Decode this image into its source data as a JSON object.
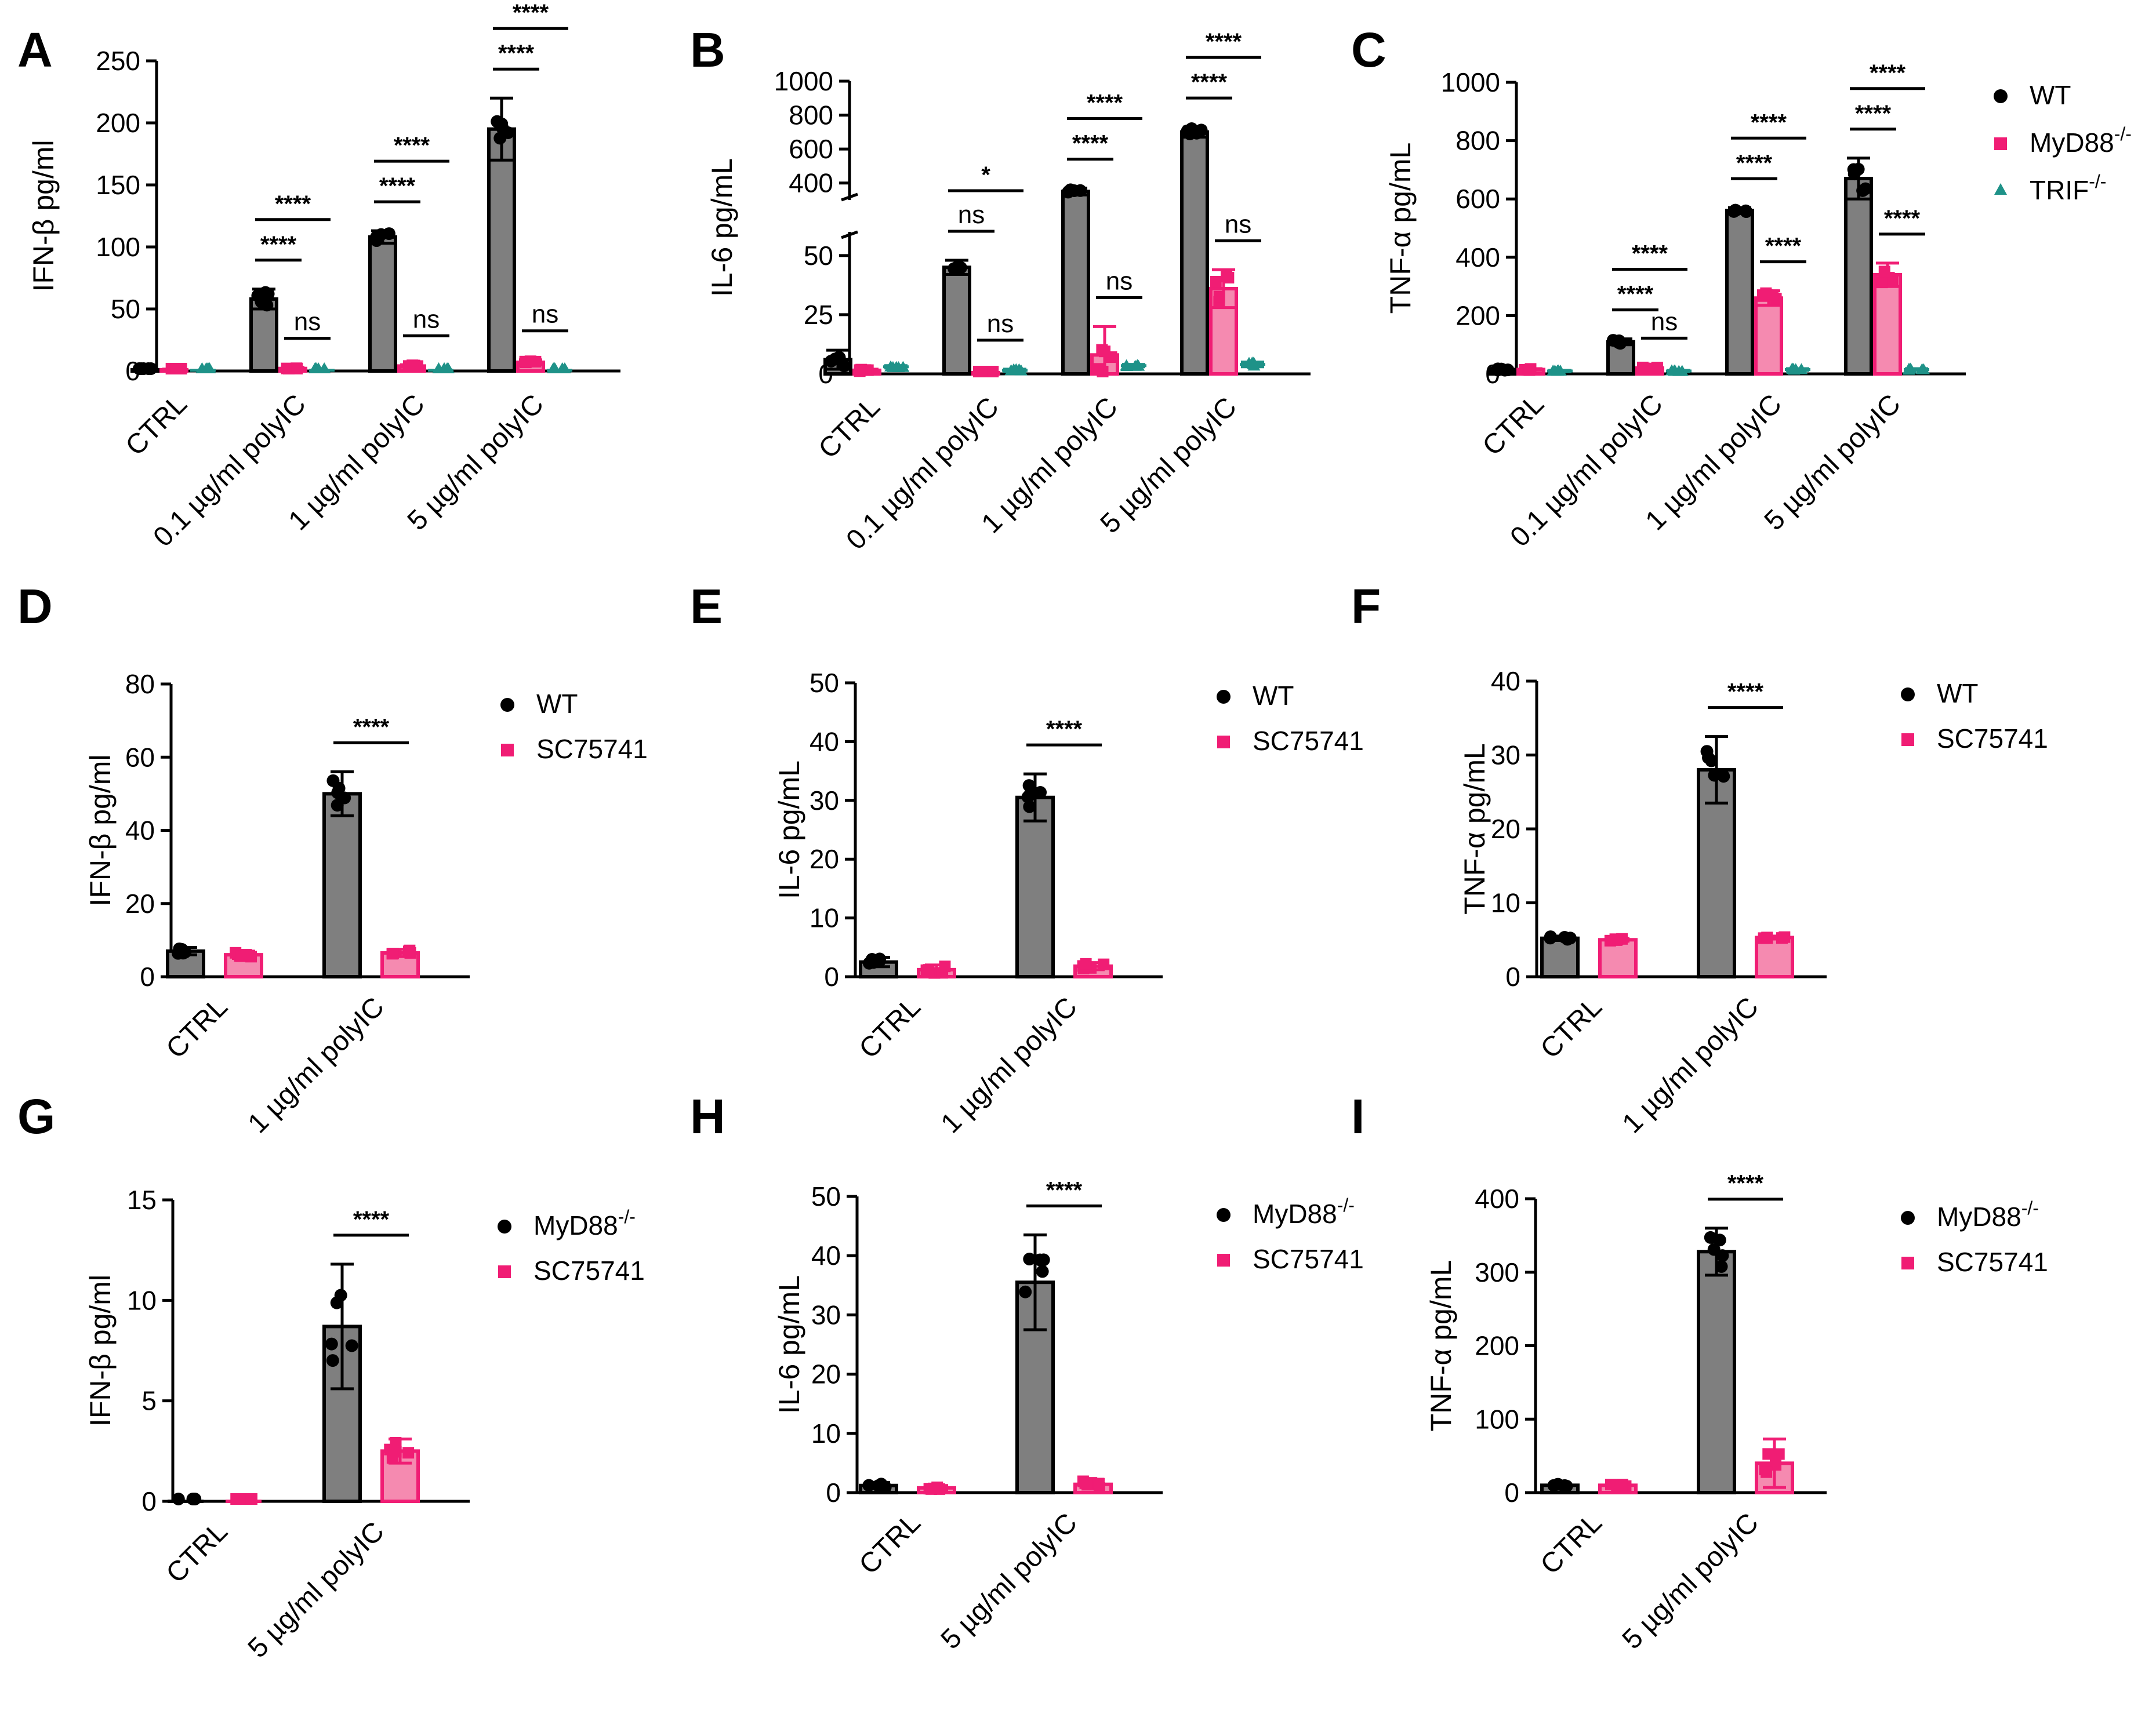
{
  "figure": {
    "colors": {
      "WT": "#222222",
      "MyD88": "#f01d74",
      "TRIF": "#1e9288",
      "SC75741": "#f01d74",
      "bar_grey": "#7f7f7f",
      "bar_pink": "#f58ab0"
    }
  },
  "chart_data": [
    {
      "id": "A",
      "type": "bar",
      "panel_label": "A",
      "ylabel": "IFN-β  pg/ml",
      "ylim": [
        0,
        250
      ],
      "yticks": [
        0,
        50,
        100,
        150,
        200,
        250
      ],
      "categories": [
        "CTRL",
        "0.1 µg/ml polyIC",
        "1 µg/ml polyIC",
        "5 µg/ml polyIC"
      ],
      "series": [
        {
          "name": "WT",
          "values": [
            1,
            58,
            108,
            195
          ],
          "errors": [
            0.5,
            8,
            5,
            25
          ]
        },
        {
          "name": "MyD88",
          "values": [
            1,
            2,
            4,
            7
          ],
          "errors": [
            0.5,
            1,
            1,
            2
          ]
        },
        {
          "name": "TRIF",
          "values": [
            0.5,
            0.5,
            0.5,
            0.5
          ],
          "errors": [
            0,
            0,
            0,
            0
          ]
        }
      ],
      "annotations": [
        {
          "cat": 1,
          "from": 0,
          "to": 1,
          "text": "****"
        },
        {
          "cat": 1,
          "from": 0,
          "to": 2,
          "text": "****"
        },
        {
          "cat": 1,
          "from": 1,
          "to": 2,
          "text": "ns"
        },
        {
          "cat": 2,
          "from": 0,
          "to": 1,
          "text": "****"
        },
        {
          "cat": 2,
          "from": 0,
          "to": 2,
          "text": "****"
        },
        {
          "cat": 2,
          "from": 1,
          "to": 2,
          "text": "ns"
        },
        {
          "cat": 3,
          "from": 0,
          "to": 1,
          "text": "****"
        },
        {
          "cat": 3,
          "from": 0,
          "to": 2,
          "text": "****"
        },
        {
          "cat": 3,
          "from": 1,
          "to": 2,
          "text": "ns"
        }
      ]
    },
    {
      "id": "B",
      "type": "bar",
      "panel_label": "B",
      "ylabel": "IL-6  pg/mL",
      "ylim": [
        0,
        1000
      ],
      "axis_break": {
        "lower": [
          0,
          60
        ],
        "upper": [
          300,
          1000
        ]
      },
      "yticks_lower": [
        0,
        25,
        50
      ],
      "yticks_upper": [
        400,
        600,
        800,
        1000
      ],
      "categories": [
        "CTRL",
        "0.1 µg/ml polyIC",
        "1 µg/ml polyIC",
        "5 µg/ml polyIC"
      ],
      "series": [
        {
          "name": "WT",
          "values": [
            6,
            45,
            350,
            700
          ],
          "errors": [
            4,
            3,
            20,
            30
          ]
        },
        {
          "name": "MyD88",
          "values": [
            1.5,
            0.5,
            8,
            36
          ],
          "errors": [
            0.5,
            0,
            12,
            8
          ]
        },
        {
          "name": "TRIF",
          "values": [
            3,
            1.5,
            3.5,
            4
          ],
          "errors": [
            0.5,
            0.5,
            0.5,
            1
          ]
        }
      ],
      "annotations": [
        {
          "cat": 1,
          "from": 0,
          "to": 1,
          "text": "ns"
        },
        {
          "cat": 1,
          "from": 0,
          "to": 2,
          "text": "*"
        },
        {
          "cat": 1,
          "from": 1,
          "to": 2,
          "text": "ns"
        },
        {
          "cat": 2,
          "from": 0,
          "to": 1,
          "text": "****"
        },
        {
          "cat": 2,
          "from": 0,
          "to": 2,
          "text": "****"
        },
        {
          "cat": 2,
          "from": 1,
          "to": 2,
          "text": "ns"
        },
        {
          "cat": 3,
          "from": 0,
          "to": 1,
          "text": "****"
        },
        {
          "cat": 3,
          "from": 0,
          "to": 2,
          "text": "****"
        },
        {
          "cat": 3,
          "from": 1,
          "to": 2,
          "text": "ns"
        }
      ]
    },
    {
      "id": "C",
      "type": "bar",
      "panel_label": "C",
      "ylabel": "TNF-α pg/mL",
      "ylim": [
        0,
        1000
      ],
      "yticks": [
        0,
        200,
        400,
        600,
        800,
        1000
      ],
      "categories": [
        "CTRL",
        "0.1 µg/ml polyIC",
        "1 µg/ml polyIC",
        "5 µg/ml polyIC"
      ],
      "series": [
        {
          "name": "WT",
          "values": [
            15,
            110,
            560,
            670
          ],
          "errors": [
            5,
            10,
            10,
            70
          ]
        },
        {
          "name": "MyD88",
          "values": [
            15,
            20,
            260,
            340
          ],
          "errors": [
            3,
            3,
            25,
            40
          ]
        },
        {
          "name": "TRIF",
          "values": [
            10,
            10,
            15,
            15
          ],
          "errors": [
            2,
            2,
            3,
            3
          ]
        }
      ],
      "legend": [
        {
          "label": "WT",
          "sup": ""
        },
        {
          "label": "MyD88",
          "sup": "-/-"
        },
        {
          "label": "TRIF",
          "sup": "-/-"
        }
      ],
      "annotations": [
        {
          "cat": 1,
          "from": 0,
          "to": 1,
          "text": "****"
        },
        {
          "cat": 1,
          "from": 0,
          "to": 2,
          "text": "****"
        },
        {
          "cat": 1,
          "from": 1,
          "to": 2,
          "text": "ns"
        },
        {
          "cat": 2,
          "from": 0,
          "to": 1,
          "text": "****"
        },
        {
          "cat": 2,
          "from": 0,
          "to": 2,
          "text": "****"
        },
        {
          "cat": 2,
          "from": 1,
          "to": 2,
          "text": "****"
        },
        {
          "cat": 3,
          "from": 0,
          "to": 1,
          "text": "****"
        },
        {
          "cat": 3,
          "from": 0,
          "to": 2,
          "text": "****"
        },
        {
          "cat": 3,
          "from": 1,
          "to": 2,
          "text": "****"
        }
      ]
    },
    {
      "id": "D",
      "type": "bar",
      "panel_label": "D",
      "ylabel": "IFN-β  pg/ml",
      "ylim": [
        0,
        80
      ],
      "yticks": [
        0,
        20,
        40,
        60,
        80
      ],
      "categories": [
        "CTRL",
        "1 µg/ml polyIC"
      ],
      "series": [
        {
          "name": "WT",
          "values": [
            7,
            50
          ],
          "errors": [
            1,
            6
          ]
        },
        {
          "name": "SC75741",
          "values": [
            6,
            6.5
          ],
          "errors": [
            1,
            1
          ]
        }
      ],
      "legend": [
        {
          "label": "WT",
          "sup": ""
        },
        {
          "label": "SC75741",
          "sup": ""
        }
      ],
      "annotations": [
        {
          "cat": 1,
          "from": 0,
          "to": 1,
          "text": "****"
        }
      ]
    },
    {
      "id": "E",
      "type": "bar",
      "panel_label": "E",
      "ylabel": "IL-6  pg/mL",
      "ylim": [
        0,
        50
      ],
      "yticks": [
        0,
        10,
        20,
        30,
        40,
        50
      ],
      "categories": [
        "CTRL",
        "1 µg/ml polyIC"
      ],
      "series": [
        {
          "name": "WT",
          "values": [
            2.5,
            30.5
          ],
          "errors": [
            0.8,
            4
          ]
        },
        {
          "name": "SC75741",
          "values": [
            1.2,
            1.8
          ],
          "errors": [
            0.8,
            0.6
          ]
        }
      ],
      "legend": [
        {
          "label": "WT",
          "sup": ""
        },
        {
          "label": "SC75741",
          "sup": ""
        }
      ],
      "annotations": [
        {
          "cat": 1,
          "from": 0,
          "to": 1,
          "text": "****"
        }
      ]
    },
    {
      "id": "F",
      "type": "bar",
      "panel_label": "F",
      "ylabel": "TNF-α pg/mL",
      "ylim": [
        0,
        40
      ],
      "yticks": [
        0,
        10,
        20,
        30,
        40
      ],
      "categories": [
        "CTRL",
        "1 µg/ml polyIC"
      ],
      "series": [
        {
          "name": "WT",
          "values": [
            5.2,
            28
          ],
          "errors": [
            0.3,
            4.5
          ]
        },
        {
          "name": "SC75741",
          "values": [
            5,
            5.3
          ],
          "errors": [
            0.2,
            0.2
          ]
        }
      ],
      "legend": [
        {
          "label": "WT",
          "sup": ""
        },
        {
          "label": "SC75741",
          "sup": ""
        }
      ],
      "annotations": [
        {
          "cat": 1,
          "from": 0,
          "to": 1,
          "text": "****"
        }
      ]
    },
    {
      "id": "G",
      "type": "bar",
      "panel_label": "G",
      "ylabel": "IFN-β  pg/ml",
      "ylim": [
        0,
        15
      ],
      "yticks": [
        0,
        5,
        10,
        15
      ],
      "categories": [
        "CTRL",
        "5 µg/ml polyIC"
      ],
      "series": [
        {
          "name": "MyD88",
          "values": [
            0,
            8.7
          ],
          "errors": [
            0,
            3.1
          ]
        },
        {
          "name": "SC75741",
          "values": [
            0,
            2.5
          ],
          "errors": [
            0,
            0.6
          ]
        }
      ],
      "legend": [
        {
          "label": "MyD88",
          "sup": "-/-"
        },
        {
          "label": "SC75741",
          "sup": ""
        }
      ],
      "annotations": [
        {
          "cat": 1,
          "from": 0,
          "to": 1,
          "text": "****"
        }
      ]
    },
    {
      "id": "H",
      "type": "bar",
      "panel_label": "H",
      "ylabel": "IL-6  pg/mL",
      "ylim": [
        0,
        50
      ],
      "yticks": [
        0,
        10,
        20,
        30,
        40,
        50
      ],
      "categories": [
        "CTRL",
        "5 µg/ml polyIC"
      ],
      "series": [
        {
          "name": "MyD88",
          "values": [
            1.2,
            35.5
          ],
          "errors": [
            0.5,
            8
          ]
        },
        {
          "name": "SC75741",
          "values": [
            0.8,
            1.4
          ],
          "errors": [
            0.4,
            0.8
          ]
        }
      ],
      "legend": [
        {
          "label": "MyD88",
          "sup": "-/-"
        },
        {
          "label": "SC75741",
          "sup": ""
        }
      ],
      "annotations": [
        {
          "cat": 1,
          "from": 0,
          "to": 1,
          "text": "****"
        }
      ]
    },
    {
      "id": "I",
      "type": "bar",
      "panel_label": "I",
      "ylabel": "TNF-α pg/mL",
      "ylim": [
        0,
        400
      ],
      "yticks": [
        0,
        100,
        200,
        300,
        400
      ],
      "categories": [
        "CTRL",
        "5 µg/ml polyIC"
      ],
      "series": [
        {
          "name": "MyD88",
          "values": [
            10,
            328
          ],
          "errors": [
            2,
            32
          ]
        },
        {
          "name": "SC75741",
          "values": [
            10,
            40
          ],
          "errors": [
            2,
            33
          ]
        }
      ],
      "legend": [
        {
          "label": "MyD88",
          "sup": "-/-"
        },
        {
          "label": "SC75741",
          "sup": ""
        }
      ],
      "annotations": [
        {
          "cat": 1,
          "from": 0,
          "to": 1,
          "text": "****"
        }
      ]
    }
  ]
}
